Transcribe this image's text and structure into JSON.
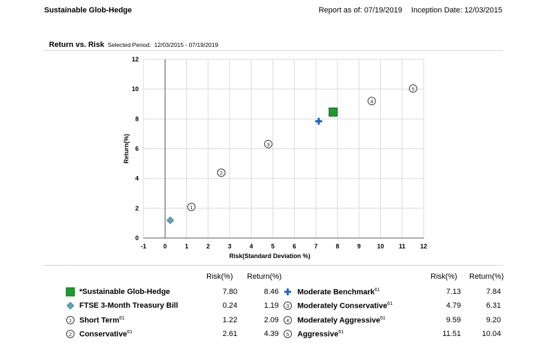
{
  "header": {
    "fund_name": "Sustainable Glob-Hedge",
    "report_as_of": "Report as of: 07/19/2019",
    "inception_date": "Inception Date: 12/03/2015"
  },
  "section": {
    "title": "Return vs. Risk",
    "period_label": "Selected Period:",
    "period": "12/03/2015 - 07/19/2019"
  },
  "chart_data": {
    "type": "scatter",
    "xlabel": "Risk(Standard Deviation %)",
    "ylabel": "Return(%)",
    "xlim": [
      -1,
      12
    ],
    "ylim": [
      0,
      12
    ],
    "x_ticks": [
      -1,
      0,
      1,
      2,
      3,
      4,
      5,
      6,
      7,
      8,
      9,
      10,
      11,
      12
    ],
    "y_ticks": [
      0,
      2,
      4,
      6,
      8,
      10,
      12
    ],
    "grid": true,
    "points": [
      {
        "name": "*Sustainable Glob-Hedge",
        "x": 7.8,
        "y": 8.46,
        "marker": "square",
        "color": "#1e9a2e"
      },
      {
        "name": "FTSE 3-Month Treasury Bill",
        "x": 0.24,
        "y": 1.19,
        "marker": "diamond",
        "color": "#5aa6b8"
      },
      {
        "name": "Short Term",
        "x": 1.22,
        "y": 2.09,
        "marker": "circle",
        "label": "1"
      },
      {
        "name": "Conservative",
        "x": 2.61,
        "y": 4.39,
        "marker": "circle",
        "label": "2"
      },
      {
        "name": "Moderate Benchmark",
        "x": 7.13,
        "y": 7.84,
        "marker": "cross",
        "color": "#1f5fc4"
      },
      {
        "name": "Moderately Conservative",
        "x": 4.79,
        "y": 6.31,
        "marker": "circle",
        "label": "3"
      },
      {
        "name": "Moderately Aggressive",
        "x": 9.59,
        "y": 9.2,
        "marker": "circle",
        "label": "4"
      },
      {
        "name": "Aggressive",
        "x": 11.51,
        "y": 10.04,
        "marker": "circle",
        "label": "5"
      }
    ]
  },
  "legend": {
    "col_risk": "Risk(%)",
    "col_return": "Return(%)",
    "left": [
      {
        "name": "*Sustainable Glob-Hedge",
        "sup": "",
        "risk": "7.80",
        "ret": "8.46",
        "marker": "square",
        "color": "#1e9a2e"
      },
      {
        "name": "FTSE 3-Month Treasury Bill",
        "sup": "",
        "risk": "0.24",
        "ret": "1.19",
        "marker": "diamond",
        "color": "#5aa6b8"
      },
      {
        "name": "Short Term",
        "sup": "61",
        "risk": "1.22",
        "ret": "2.09",
        "marker": "circle",
        "label": "1"
      },
      {
        "name": "Conservative",
        "sup": "61",
        "risk": "2.61",
        "ret": "4.39",
        "marker": "circle",
        "label": "2"
      }
    ],
    "right": [
      {
        "name": "Moderate Benchmark",
        "sup": "61",
        "risk": "7.13",
        "ret": "7.84",
        "marker": "cross",
        "color": "#1f5fc4"
      },
      {
        "name": "Moderately Conservative",
        "sup": "61",
        "risk": "4.79",
        "ret": "6.31",
        "marker": "circle",
        "label": "3"
      },
      {
        "name": "Moderately Aggressive",
        "sup": "61",
        "risk": "9.59",
        "ret": "9.20",
        "marker": "circle",
        "label": "4"
      },
      {
        "name": "Aggressive",
        "sup": "61",
        "risk": "11.51",
        "ret": "10.04",
        "marker": "circle",
        "label": "5"
      }
    ]
  }
}
